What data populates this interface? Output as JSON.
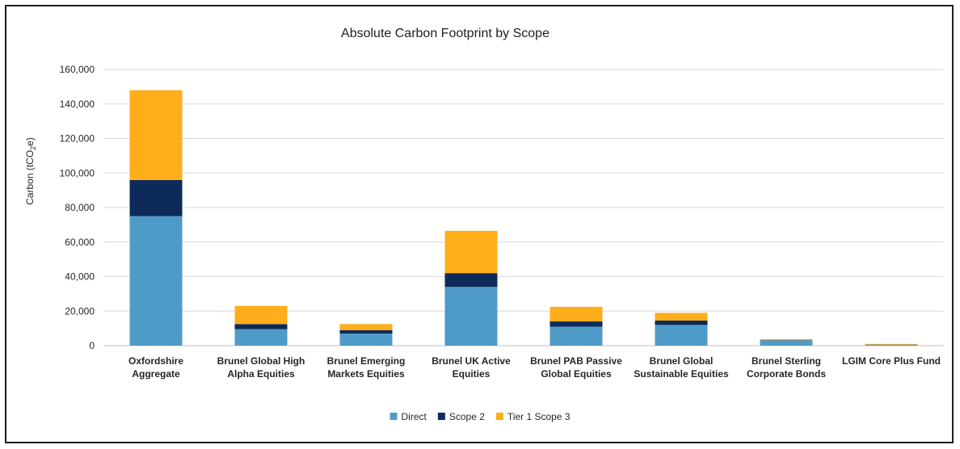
{
  "chart_data": {
    "type": "bar",
    "stacked": true,
    "title": "Absolute Carbon Footprint by Scope",
    "ylabel": "Carbon (tCO",
    "ylabel_sub": "2",
    "ylabel_suffix": "e)",
    "xlabel": "",
    "ylim": [
      0,
      160000
    ],
    "yticks": [
      0,
      20000,
      40000,
      60000,
      80000,
      100000,
      120000,
      140000,
      160000
    ],
    "ytick_labels": [
      "0",
      "20,000",
      "40,000",
      "60,000",
      "80,000",
      "100,000",
      "120,000",
      "140,000",
      "160,000"
    ],
    "grid": true,
    "legend_position": "bottom",
    "categories": [
      [
        "Oxfordshire",
        "Aggregate"
      ],
      [
        "Brunel Global High",
        "Alpha Equities"
      ],
      [
        "Brunel Emerging",
        "Markets Equities"
      ],
      [
        "Brunel UK Active",
        "Equities"
      ],
      [
        "Brunel PAB Passive",
        "Global Equities"
      ],
      [
        "Brunel Global",
        "Sustainable Equities"
      ],
      [
        "Brunel Sterling",
        "Corporate Bonds"
      ],
      [
        "LGIM Core Plus Fund"
      ]
    ],
    "series": [
      {
        "name": "Direct",
        "color": "#4f9bc8",
        "values": [
          75000,
          9500,
          7000,
          34000,
          11000,
          12000,
          3000,
          500
        ]
      },
      {
        "name": "Scope 2",
        "color": "#0e2a5a",
        "values": [
          21000,
          3000,
          2000,
          8000,
          3000,
          2500,
          200,
          100
        ]
      },
      {
        "name": "Tier 1 Scope 3",
        "color": "#fdae1a",
        "values": [
          52000,
          10500,
          3500,
          24500,
          8500,
          4500,
          600,
          400
        ]
      }
    ]
  }
}
